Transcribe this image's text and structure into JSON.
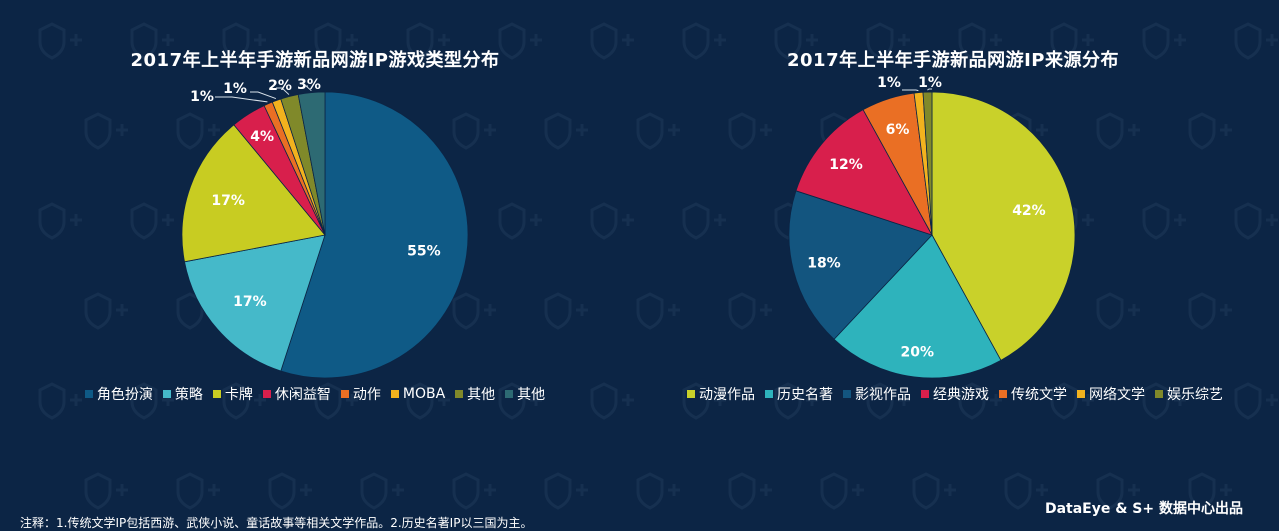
{
  "chart_data": [
    {
      "type": "pie",
      "title": "2017年上半年手游新品网游IP游戏类型分布",
      "slices": [
        {
          "label": "角色扮演",
          "value": 55,
          "display": "55%",
          "color": "#0f5a86"
        },
        {
          "label": "策略",
          "value": 17,
          "display": "17%",
          "color": "#45b9c9"
        },
        {
          "label": "卡牌",
          "value": 17,
          "display": "17%",
          "color": "#c8cc22"
        },
        {
          "label": "休闲益智",
          "value": 4,
          "display": "4%",
          "color": "#d81f4c"
        },
        {
          "label": "动作",
          "value": 1,
          "display": "1%",
          "color": "#ea6f24"
        },
        {
          "label": "MOBA",
          "value": 1,
          "display": "1%",
          "color": "#f2b21e"
        },
        {
          "label": "其他",
          "value": 2,
          "display": "2%",
          "color": "#80892a"
        },
        {
          "label": "其他",
          "value": 3,
          "display": "3%",
          "color": "#2d6a73"
        }
      ]
    },
    {
      "type": "pie",
      "title": "2017年上半年手游新品网游IP来源分布",
      "slices": [
        {
          "label": "动漫作品",
          "value": 42,
          "display": "42%",
          "color": "#c9d12a"
        },
        {
          "label": "历史名著",
          "value": 20,
          "display": "20%",
          "color": "#2eb3bc"
        },
        {
          "label": "影视作品",
          "value": 18,
          "display": "18%",
          "color": "#13557f"
        },
        {
          "label": "经典游戏",
          "value": 12,
          "display": "12%",
          "color": "#d81f4c"
        },
        {
          "label": "传统文学",
          "value": 6,
          "display": "6%",
          "color": "#ea6f24"
        },
        {
          "label": "网络文学",
          "value": 1,
          "display": "1%",
          "color": "#f2b21e"
        },
        {
          "label": "娱乐综艺",
          "value": 1,
          "display": "1%",
          "color": "#80892a"
        }
      ]
    }
  ],
  "footnote": "注释：1.传统文学IP包括西游、武侠小说、童话故事等相关文学作品。2.历史名著IP以三国为主。",
  "credit": "DataEye & S+ 数据中心出品"
}
